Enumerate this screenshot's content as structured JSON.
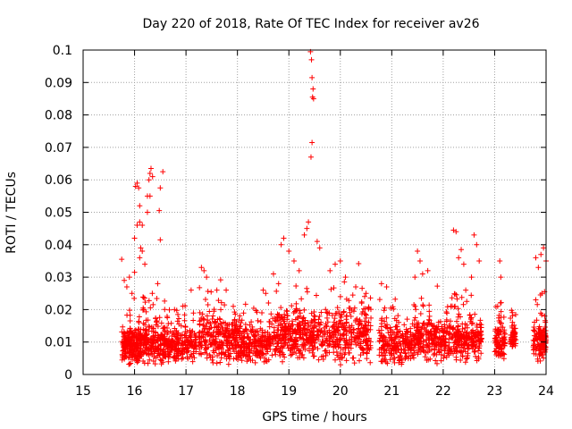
{
  "chart_data": {
    "type": "scatter",
    "title": "Day 220 of 2018, Rate Of TEC Index for receiver av26",
    "xlabel": "GPS time / hours",
    "ylabel": "ROTI / TECUs",
    "xlim": [
      15,
      24
    ],
    "ylim": [
      0,
      0.1
    ],
    "grid": true,
    "marker": "plus",
    "color": "#ff0000",
    "x_ticks": [
      "15",
      "16",
      "17",
      "18",
      "19",
      "20",
      "21",
      "22",
      "23",
      "24"
    ],
    "y_ticks": [
      "0",
      "0.01",
      "0.02",
      "0.03",
      "0.04",
      "0.05",
      "0.06",
      "0.07",
      "0.08",
      "0.09",
      "0.1"
    ],
    "series": [
      {
        "name": "ROTI",
        "clusters": [
          {
            "x_range": [
              15.75,
              16.15
            ],
            "y_base": 0.009,
            "y_spread": 0.008,
            "count": 220
          },
          {
            "x_range": [
              16.15,
              16.6
            ],
            "y_base": 0.01,
            "y_spread": 0.009,
            "count": 200
          },
          {
            "x_range": [
              16.6,
              17.2
            ],
            "y_base": 0.009,
            "y_spread": 0.008,
            "count": 220
          },
          {
            "x_range": [
              17.25,
              18.0
            ],
            "y_base": 0.011,
            "y_spread": 0.01,
            "count": 280
          },
          {
            "x_range": [
              18.0,
              18.6
            ],
            "y_base": 0.009,
            "y_spread": 0.008,
            "count": 220
          },
          {
            "x_range": [
              18.6,
              19.4
            ],
            "y_base": 0.012,
            "y_spread": 0.01,
            "count": 300
          },
          {
            "x_range": [
              19.4,
              20.6
            ],
            "y_base": 0.012,
            "y_spread": 0.011,
            "count": 380
          },
          {
            "x_range": [
              20.75,
              21.4
            ],
            "y_base": 0.009,
            "y_spread": 0.009,
            "count": 220
          },
          {
            "x_range": [
              21.4,
              22.2
            ],
            "y_base": 0.011,
            "y_spread": 0.009,
            "count": 280
          },
          {
            "x_range": [
              22.2,
              22.75
            ],
            "y_base": 0.011,
            "y_spread": 0.009,
            "count": 220
          },
          {
            "x_range": [
              23.0,
              23.2
            ],
            "y_base": 0.01,
            "y_spread": 0.008,
            "count": 100
          },
          {
            "x_range": [
              23.3,
              23.42
            ],
            "y_base": 0.011,
            "y_spread": 0.006,
            "count": 50
          },
          {
            "x_range": [
              23.75,
              24.0
            ],
            "y_base": 0.01,
            "y_spread": 0.008,
            "count": 130
          }
        ],
        "highlights": [
          {
            "x": 15.75,
            "y": 0.0355
          },
          {
            "x": 15.8,
            "y": 0.029
          },
          {
            "x": 15.85,
            "y": 0.027
          },
          {
            "x": 15.9,
            "y": 0.03
          },
          {
            "x": 15.95,
            "y": 0.025
          },
          {
            "x": 16.0,
            "y": 0.0315
          },
          {
            "x": 16.02,
            "y": 0.058
          },
          {
            "x": 16.05,
            "y": 0.059
          },
          {
            "x": 16.08,
            "y": 0.0575
          },
          {
            "x": 16.05,
            "y": 0.046
          },
          {
            "x": 16.1,
            "y": 0.047
          },
          {
            "x": 16.1,
            "y": 0.052
          },
          {
            "x": 16.15,
            "y": 0.046
          },
          {
            "x": 16.12,
            "y": 0.039
          },
          {
            "x": 16.15,
            "y": 0.038
          },
          {
            "x": 16.2,
            "y": 0.034
          },
          {
            "x": 16.1,
            "y": 0.036
          },
          {
            "x": 16.0,
            "y": 0.042
          },
          {
            "x": 16.25,
            "y": 0.055
          },
          {
            "x": 16.28,
            "y": 0.06
          },
          {
            "x": 16.3,
            "y": 0.062
          },
          {
            "x": 16.32,
            "y": 0.0635
          },
          {
            "x": 16.35,
            "y": 0.061
          },
          {
            "x": 16.3,
            "y": 0.055
          },
          {
            "x": 16.25,
            "y": 0.05
          },
          {
            "x": 16.5,
            "y": 0.0575
          },
          {
            "x": 16.55,
            "y": 0.0625
          },
          {
            "x": 16.48,
            "y": 0.0505
          },
          {
            "x": 16.5,
            "y": 0.0415
          },
          {
            "x": 16.45,
            "y": 0.028
          },
          {
            "x": 17.3,
            "y": 0.033
          },
          {
            "x": 17.35,
            "y": 0.032
          },
          {
            "x": 17.4,
            "y": 0.03
          },
          {
            "x": 17.1,
            "y": 0.026
          },
          {
            "x": 17.6,
            "y": 0.026
          },
          {
            "x": 18.5,
            "y": 0.026
          },
          {
            "x": 18.55,
            "y": 0.025
          },
          {
            "x": 18.8,
            "y": 0.028
          },
          {
            "x": 18.85,
            "y": 0.04
          },
          {
            "x": 18.9,
            "y": 0.042
          },
          {
            "x": 18.7,
            "y": 0.031
          },
          {
            "x": 19.0,
            "y": 0.038
          },
          {
            "x": 19.1,
            "y": 0.035
          },
          {
            "x": 19.2,
            "y": 0.032
          },
          {
            "x": 19.3,
            "y": 0.043
          },
          {
            "x": 19.35,
            "y": 0.045
          },
          {
            "x": 19.38,
            "y": 0.047
          },
          {
            "x": 19.42,
            "y": 0.0995
          },
          {
            "x": 19.44,
            "y": 0.097
          },
          {
            "x": 19.45,
            "y": 0.0915
          },
          {
            "x": 19.47,
            "y": 0.088
          },
          {
            "x": 19.48,
            "y": 0.085
          },
          {
            "x": 19.46,
            "y": 0.0855
          },
          {
            "x": 19.45,
            "y": 0.0715
          },
          {
            "x": 19.43,
            "y": 0.067
          },
          {
            "x": 19.55,
            "y": 0.041
          },
          {
            "x": 19.6,
            "y": 0.039
          },
          {
            "x": 19.8,
            "y": 0.032
          },
          {
            "x": 19.9,
            "y": 0.034
          },
          {
            "x": 20.0,
            "y": 0.035
          },
          {
            "x": 20.1,
            "y": 0.03
          },
          {
            "x": 20.3,
            "y": 0.027
          },
          {
            "x": 20.5,
            "y": 0.025
          },
          {
            "x": 20.8,
            "y": 0.028
          },
          {
            "x": 20.9,
            "y": 0.027
          },
          {
            "x": 21.5,
            "y": 0.038
          },
          {
            "x": 21.55,
            "y": 0.035
          },
          {
            "x": 21.6,
            "y": 0.031
          },
          {
            "x": 21.45,
            "y": 0.03
          },
          {
            "x": 21.7,
            "y": 0.032
          },
          {
            "x": 22.2,
            "y": 0.0445
          },
          {
            "x": 22.25,
            "y": 0.044
          },
          {
            "x": 22.3,
            "y": 0.036
          },
          {
            "x": 22.35,
            "y": 0.0385
          },
          {
            "x": 22.4,
            "y": 0.034
          },
          {
            "x": 22.6,
            "y": 0.043
          },
          {
            "x": 22.65,
            "y": 0.04
          },
          {
            "x": 22.7,
            "y": 0.035
          },
          {
            "x": 22.55,
            "y": 0.03
          },
          {
            "x": 23.1,
            "y": 0.035
          },
          {
            "x": 23.12,
            "y": 0.03
          },
          {
            "x": 23.8,
            "y": 0.036
          },
          {
            "x": 23.85,
            "y": 0.033
          },
          {
            "x": 23.9,
            "y": 0.037
          },
          {
            "x": 23.95,
            "y": 0.039
          },
          {
            "x": 24.0,
            "y": 0.035
          },
          {
            "x": 23.92,
            "y": 0.025
          },
          {
            "x": 23.97,
            "y": 0.0255
          },
          {
            "x": 23.8,
            "y": 0.023
          }
        ]
      }
    ]
  }
}
